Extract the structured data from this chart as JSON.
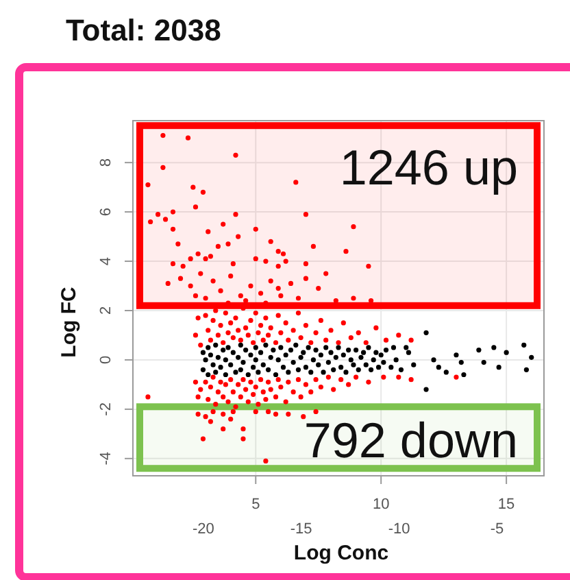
{
  "chart_data": {
    "type": "scatter",
    "title": "Total: 2038",
    "ylabel": "Log FC",
    "x2label": "Log Conc",
    "xlim": [
      0.1,
      16.5
    ],
    "xticks": [
      5,
      10,
      15
    ],
    "x2lim": [
      -23.6,
      -2.6
    ],
    "x2ticks": [
      -20,
      -15,
      -10,
      -5
    ],
    "ylim": [
      -4.7,
      9.7
    ],
    "yticks": [
      -4,
      -2,
      0,
      2,
      4,
      6,
      8
    ],
    "grid": true,
    "marker": "circle",
    "bands": [
      {
        "axis": "y",
        "from": 2.2,
        "to": 9.5,
        "label": "1246 up",
        "color": "#ff0000"
      },
      {
        "axis": "y",
        "from": -4.4,
        "to": -1.9,
        "label": "792 down",
        "color": "#7dc24f"
      }
    ],
    "series": [
      {
        "color": "#ff0000",
        "x": [
          1.3,
          2.3,
          4.2,
          0.7,
          1.3,
          2.5,
          2.9,
          6.6,
          1.1,
          0.8,
          1.4,
          1.7,
          2.6,
          4.2,
          7.0,
          1.7,
          1.9,
          3.7,
          5.0,
          4.3,
          3.9,
          3.1,
          3.5,
          5.6,
          7.3,
          2.4,
          2.7,
          3.0,
          3.2,
          1.7,
          2.1,
          4.1,
          5.0,
          5.4,
          5.9,
          6.1,
          6.2,
          5.9,
          7.0,
          8.9,
          8.6,
          9.5,
          7.0,
          7.5,
          6.7,
          8.2,
          8.9,
          9.6,
          2.0,
          2.4,
          2.8,
          3.3,
          3.6,
          4.0,
          4.4,
          4.8,
          5.2,
          5.6,
          6.0,
          6.4,
          3.0,
          3.9,
          4.6,
          5.4,
          2.6,
          5.9,
          7.8,
          1.5,
          2.6,
          2.7,
          2.8,
          3.0,
          3.1,
          3.2,
          3.3,
          3.4,
          3.5,
          3.6,
          3.7,
          3.8,
          3.9,
          4.0,
          4.1,
          4.2,
          4.3,
          4.4,
          4.5,
          4.6,
          4.7,
          4.8,
          4.9,
          5.0,
          5.1,
          5.2,
          5.3,
          5.4,
          5.5,
          5.6,
          5.8,
          5.9,
          6.0,
          6.2,
          6.3,
          6.5,
          6.7,
          6.8,
          7.0,
          7.2,
          7.4,
          7.6,
          7.8,
          8.0,
          8.3,
          8.5,
          8.8,
          9.1,
          9.4,
          9.8,
          10.2,
          10.7,
          11.2,
          2.6,
          2.7,
          2.8,
          3.0,
          3.1,
          3.2,
          3.3,
          3.4,
          3.5,
          3.6,
          3.7,
          3.8,
          3.9,
          4.0,
          4.1,
          4.2,
          4.3,
          4.4,
          4.5,
          4.6,
          4.7,
          4.8,
          4.9,
          5.0,
          5.1,
          5.2,
          5.3,
          5.4,
          5.5,
          5.6,
          5.8,
          5.9,
          6.0,
          6.2,
          6.3,
          6.5,
          6.7,
          6.8,
          7.0,
          7.2,
          7.4,
          7.6,
          7.9,
          8.1,
          8.4,
          8.7,
          9.0,
          9.5,
          10.1,
          10.7,
          11.2,
          13.0,
          2.7,
          3.0,
          3.3,
          3.7,
          4.1,
          5.0,
          5.5,
          5.8,
          6.3,
          2.9,
          3.7,
          4.5,
          4.5,
          5.4,
          0.7,
          6.9,
          7.4,
          3.2,
          4.0
        ],
        "values": [
          9.1,
          9.0,
          8.3,
          7.1,
          7.8,
          7.0,
          6.8,
          7.2,
          5.9,
          5.6,
          5.7,
          6.0,
          6.2,
          5.9,
          5.9,
          5.3,
          4.7,
          5.5,
          5.3,
          5.0,
          4.7,
          5.2,
          4.6,
          4.8,
          4.6,
          4.1,
          4.3,
          4.1,
          4.2,
          3.9,
          3.8,
          3.9,
          4.1,
          4.0,
          4.4,
          4.3,
          4.0,
          3.8,
          3.9,
          5.4,
          4.4,
          3.8,
          3.3,
          2.9,
          2.5,
          2.4,
          2.5,
          2.4,
          3.3,
          3.0,
          3.5,
          3.2,
          2.8,
          3.4,
          2.6,
          3.0,
          2.7,
          3.2,
          2.6,
          3.1,
          2.5,
          2.3,
          2.4,
          2.3,
          2.6,
          2.9,
          3.5,
          3.1,
          1.0,
          1.7,
          0.6,
          1.8,
          1.2,
          0.8,
          1.6,
          2.0,
          1.0,
          1.4,
          0.7,
          1.9,
          1.1,
          1.5,
          0.9,
          1.7,
          1.2,
          0.8,
          2.1,
          1.3,
          1.0,
          1.6,
          0.7,
          1.9,
          1.1,
          1.4,
          0.8,
          1.7,
          1.0,
          1.3,
          0.7,
          1.8,
          1.1,
          1.5,
          0.8,
          1.2,
          1.9,
          0.9,
          1.4,
          0.7,
          1.1,
          1.6,
          0.8,
          1.2,
          0.7,
          1.5,
          0.9,
          1.1,
          0.7,
          1.3,
          0.8,
          1.0,
          0.8,
          -0.9,
          -1.5,
          -1.2,
          -0.9,
          -1.6,
          -1.1,
          -0.7,
          -1.8,
          -1.3,
          -0.9,
          -1.5,
          -1.0,
          -1.7,
          -0.8,
          -1.3,
          -1.9,
          -1.0,
          -1.5,
          -0.8,
          -1.2,
          -1.7,
          -0.9,
          -1.4,
          -1.1,
          -1.8,
          -0.8,
          -1.3,
          -1.6,
          -0.9,
          -1.2,
          -1.5,
          -0.8,
          -1.1,
          -1.7,
          -0.9,
          -1.3,
          -0.8,
          -1.5,
          -1.0,
          -1.3,
          -0.8,
          -1.1,
          -0.7,
          -1.2,
          -0.8,
          -1.0,
          -0.7,
          -0.9,
          -0.7,
          -0.7,
          -0.8,
          -0.7,
          -2.2,
          -2.3,
          -2.1,
          -2.2,
          -2.1,
          -2.1,
          -2.1,
          -2.2,
          -2.2,
          -3.2,
          -2.8,
          -2.8,
          -3.2,
          -4.1,
          -1.5,
          -2.3,
          -2.1,
          -2.5,
          -2.4
        ]
      },
      {
        "color": "#000000",
        "x": [
          2.9,
          2.9,
          3.0,
          3.1,
          3.1,
          3.2,
          3.3,
          3.4,
          3.4,
          3.5,
          3.6,
          3.7,
          3.8,
          3.8,
          3.9,
          4.0,
          4.1,
          4.2,
          4.3,
          4.4,
          4.4,
          4.5,
          4.6,
          4.7,
          4.8,
          4.9,
          5.0,
          5.0,
          5.1,
          5.2,
          5.3,
          5.4,
          5.5,
          5.6,
          5.7,
          5.8,
          5.9,
          6.0,
          6.1,
          6.2,
          6.3,
          6.4,
          6.5,
          6.6,
          6.7,
          6.8,
          6.9,
          7.0,
          7.1,
          7.2,
          7.3,
          7.4,
          7.5,
          7.6,
          7.7,
          7.8,
          7.9,
          8.0,
          8.1,
          8.2,
          8.3,
          8.4,
          8.5,
          8.6,
          8.7,
          8.8,
          8.9,
          9.0,
          9.1,
          9.2,
          9.3,
          9.4,
          9.5,
          9.6,
          9.7,
          9.8,
          9.9,
          10.0,
          10.1,
          10.2,
          10.4,
          10.5,
          10.6,
          10.8,
          11.0,
          11.1,
          11.3,
          11.8,
          11.8,
          12.1,
          12.3,
          12.6,
          13.0,
          13.2,
          13.3,
          13.9,
          14.1,
          14.5,
          14.7,
          15.0,
          15.7,
          15.8,
          16.0
        ],
        "values": [
          0.3,
          -0.4,
          0.0,
          0.5,
          -0.6,
          0.2,
          -0.2,
          0.6,
          -0.5,
          0.1,
          -0.3,
          0.4,
          -0.6,
          0.0,
          0.5,
          -0.2,
          0.3,
          -0.5,
          0.1,
          0.6,
          -0.4,
          -0.1,
          0.4,
          -0.6,
          0.2,
          -0.3,
          0.5,
          0.0,
          -0.5,
          0.3,
          -0.2,
          0.6,
          -0.4,
          0.1,
          0.4,
          -0.6,
          0.0,
          0.5,
          -0.3,
          0.2,
          -0.5,
          0.4,
          -0.1,
          0.6,
          -0.4,
          0.1,
          0.3,
          -0.3,
          0.5,
          -0.5,
          0.0,
          0.4,
          -0.2,
          0.2,
          -0.5,
          0.5,
          -0.1,
          0.3,
          -0.4,
          0.1,
          0.5,
          -0.3,
          0.2,
          -0.5,
          0.4,
          0.0,
          -0.2,
          0.4,
          -0.4,
          0.1,
          0.3,
          -0.2,
          0.5,
          -0.4,
          0.0,
          0.3,
          -0.3,
          0.2,
          -0.1,
          0.4,
          -0.3,
          0.5,
          0.0,
          -0.4,
          0.5,
          0.3,
          -0.2,
          1.1,
          -1.2,
          0.0,
          -0.3,
          -0.5,
          0.2,
          -0.1,
          -0.6,
          0.4,
          -0.1,
          0.5,
          -0.3,
          0.3,
          0.6,
          -0.4,
          0.1
        ]
      }
    ]
  }
}
